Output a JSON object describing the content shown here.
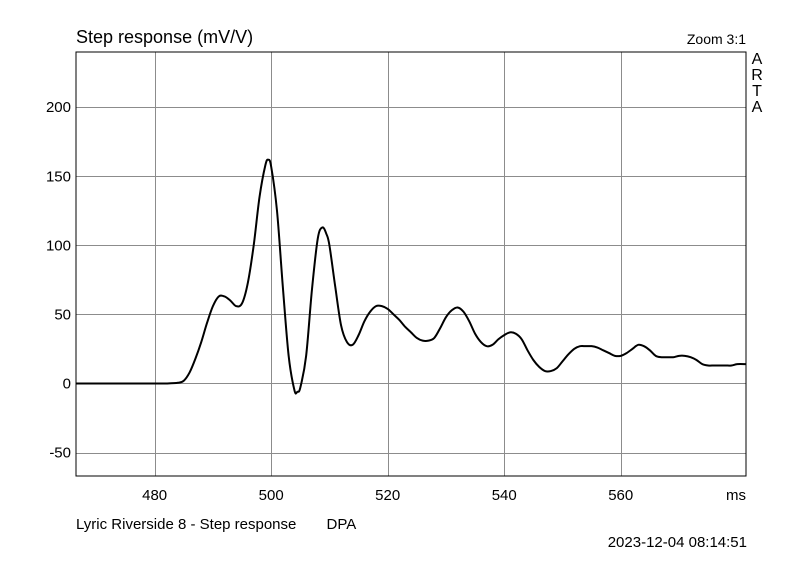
{
  "chart_data": {
    "type": "line",
    "title": "Step response (mV/V)",
    "zoom_label": "Zoom 3:1",
    "brand": "ARTA",
    "xunit": "ms",
    "xlim": [
      466.5,
      581.5
    ],
    "ylim": [
      -67,
      240
    ],
    "xticks": [
      480,
      500,
      520,
      540,
      560
    ],
    "yticks": [
      -50,
      0,
      50,
      100,
      150,
      200
    ],
    "grid": true,
    "series": [
      {
        "points": [
          [
            466.5,
            0
          ],
          [
            475,
            0
          ],
          [
            480,
            0
          ],
          [
            482,
            0
          ],
          [
            484,
            0.5
          ],
          [
            485,
            2
          ],
          [
            486,
            8
          ],
          [
            487,
            18
          ],
          [
            488,
            30
          ],
          [
            489,
            44
          ],
          [
            490,
            56
          ],
          [
            491,
            63
          ],
          [
            492,
            63
          ],
          [
            493,
            60
          ],
          [
            494,
            56
          ],
          [
            495,
            58
          ],
          [
            496,
            73
          ],
          [
            497,
            100
          ],
          [
            498,
            135
          ],
          [
            499,
            158
          ],
          [
            499.5,
            162
          ],
          [
            500,
            157
          ],
          [
            501,
            125
          ],
          [
            502,
            70
          ],
          [
            503,
            20
          ],
          [
            504,
            -5
          ],
          [
            504.5,
            -6
          ],
          [
            505,
            -3
          ],
          [
            506,
            20
          ],
          [
            507,
            68
          ],
          [
            508,
            105
          ],
          [
            508.8,
            113
          ],
          [
            509.5,
            108
          ],
          [
            510,
            100
          ],
          [
            511,
            70
          ],
          [
            512,
            42
          ],
          [
            513,
            30
          ],
          [
            514,
            28
          ],
          [
            515,
            35
          ],
          [
            516,
            45
          ],
          [
            517,
            52
          ],
          [
            518,
            56
          ],
          [
            519,
            56
          ],
          [
            520,
            54
          ],
          [
            521,
            50
          ],
          [
            522,
            46
          ],
          [
            523,
            41
          ],
          [
            524,
            37
          ],
          [
            525,
            33
          ],
          [
            526,
            31
          ],
          [
            527,
            31
          ],
          [
            528,
            33
          ],
          [
            529,
            40
          ],
          [
            530,
            48
          ],
          [
            531,
            53
          ],
          [
            532,
            55
          ],
          [
            533,
            52
          ],
          [
            534,
            45
          ],
          [
            535,
            36
          ],
          [
            536,
            30
          ],
          [
            537,
            27
          ],
          [
            538,
            28
          ],
          [
            539,
            32
          ],
          [
            540,
            35
          ],
          [
            541,
            37
          ],
          [
            542,
            36
          ],
          [
            543,
            32
          ],
          [
            544,
            24
          ],
          [
            545,
            17
          ],
          [
            546,
            12
          ],
          [
            547,
            9
          ],
          [
            548,
            9
          ],
          [
            549,
            11
          ],
          [
            550,
            16
          ],
          [
            551,
            21
          ],
          [
            552,
            25
          ],
          [
            553,
            27
          ],
          [
            554,
            27
          ],
          [
            555,
            27
          ],
          [
            556,
            26
          ],
          [
            557,
            24
          ],
          [
            558,
            22
          ],
          [
            559,
            20
          ],
          [
            560,
            20
          ],
          [
            561,
            22
          ],
          [
            562,
            25
          ],
          [
            563,
            28
          ],
          [
            564,
            27
          ],
          [
            565,
            24
          ],
          [
            566,
            20
          ],
          [
            567,
            19
          ],
          [
            568,
            19
          ],
          [
            569,
            19
          ],
          [
            570,
            20
          ],
          [
            571,
            20
          ],
          [
            572,
            19
          ],
          [
            573,
            17
          ],
          [
            574,
            14
          ],
          [
            575,
            13
          ],
          [
            576,
            13
          ],
          [
            577,
            13
          ],
          [
            578,
            13
          ],
          [
            579,
            13
          ],
          [
            580,
            14
          ],
          [
            581.5,
            14
          ]
        ]
      }
    ]
  },
  "caption": {
    "left": "Lyric Riverside 8 - Step response",
    "right": "DPA"
  },
  "timestamp": "2023-12-04   08:14:51"
}
